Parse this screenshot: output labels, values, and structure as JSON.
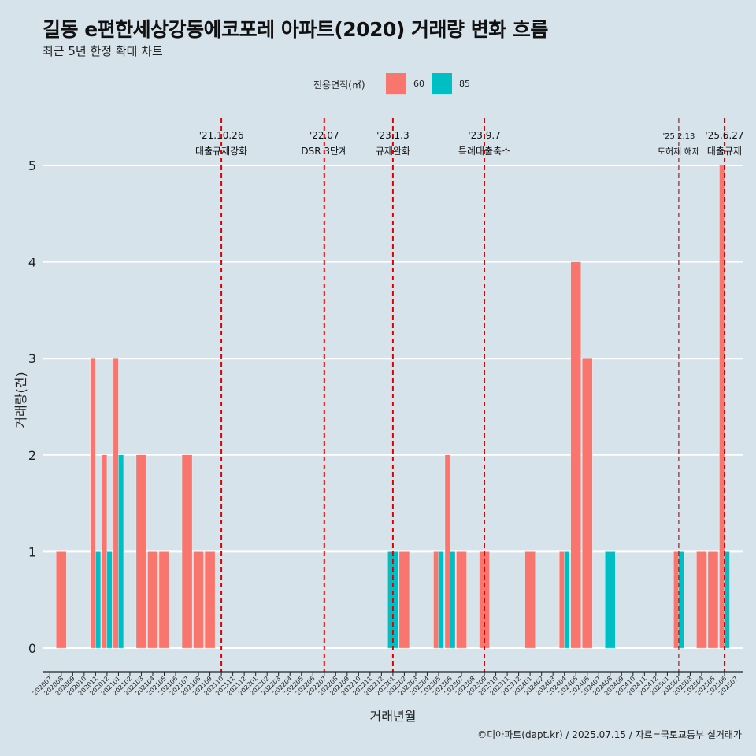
{
  "title": "길동 e편한세상강동에코포레 아파트(2020) 거래량 변화 흐름",
  "subtitle": "최근 5년 한정 확대 차트",
  "caption": "©디아파트(dapt.kr) / 2025.07.15 / 자료=국토교통부 실거래가",
  "legend": {
    "title": "전용면적(㎡)",
    "items": [
      {
        "label": "60",
        "color": "#f8766d"
      },
      {
        "label": "85",
        "color": "#00bfc4"
      }
    ]
  },
  "chart_data": {
    "type": "bar",
    "xlabel": "거래년월",
    "ylabel": "거래량(건)",
    "ylim": [
      0,
      5
    ],
    "yticks": [
      0,
      1,
      2,
      3,
      4,
      5
    ],
    "grid": true,
    "legend_position": "top",
    "categories": [
      "202007",
      "202008",
      "202009",
      "202010",
      "202011",
      "202012",
      "202101",
      "202102",
      "202103",
      "202104",
      "202105",
      "202106",
      "202107",
      "202108",
      "202109",
      "202110",
      "202111",
      "202112",
      "202201",
      "202202",
      "202203",
      "202204",
      "202205",
      "202206",
      "202207",
      "202208",
      "202209",
      "202210",
      "202211",
      "202212",
      "202301",
      "202302",
      "202303",
      "202304",
      "202305",
      "202306",
      "202307",
      "202308",
      "202309",
      "202310",
      "202311",
      "202312",
      "202401",
      "202402",
      "202403",
      "202404",
      "202405",
      "202406",
      "202407",
      "202408",
      "202409",
      "202410",
      "202411",
      "202412",
      "202501",
      "202502",
      "202503",
      "202504",
      "202505",
      "202506",
      "202507"
    ],
    "series": [
      {
        "name": "60",
        "values": {
          "202008": 1,
          "202011": 3,
          "202012": 2,
          "202101": 3,
          "202103": 2,
          "202104": 1,
          "202105": 1,
          "202107": 2,
          "202108": 1,
          "202109": 1,
          "202302": 1,
          "202305": 1,
          "202306": 2,
          "202307": 1,
          "202309": 1,
          "202401": 1,
          "202404": 1,
          "202405": 4,
          "202406": 3,
          "202502": 1,
          "202504": 1,
          "202505": 1,
          "202506": 5
        }
      },
      {
        "name": "85",
        "values": {
          "202011": 1,
          "202012": 1,
          "202101": 2,
          "202301": 1,
          "202305": 1,
          "202306": 1,
          "202404": 1,
          "202408": 1,
          "202502": 1,
          "202506": 1
        }
      }
    ],
    "annotations": [
      {
        "month": "202110",
        "date": "'21.10.26",
        "label": "대출규제강화"
      },
      {
        "month": "202207",
        "date": "'22.07",
        "label": "DSR 3단계"
      },
      {
        "month": "202301",
        "date": "'23.1.3",
        "label": "규제완화"
      },
      {
        "month": "202309",
        "date": "'23.9.7",
        "label": "특례대출축소"
      },
      {
        "month": "202502",
        "date": "'25.2.13",
        "label": "토허제 해제"
      },
      {
        "month": "202506",
        "date": "'25.6.27",
        "label": "대출규제"
      }
    ]
  }
}
